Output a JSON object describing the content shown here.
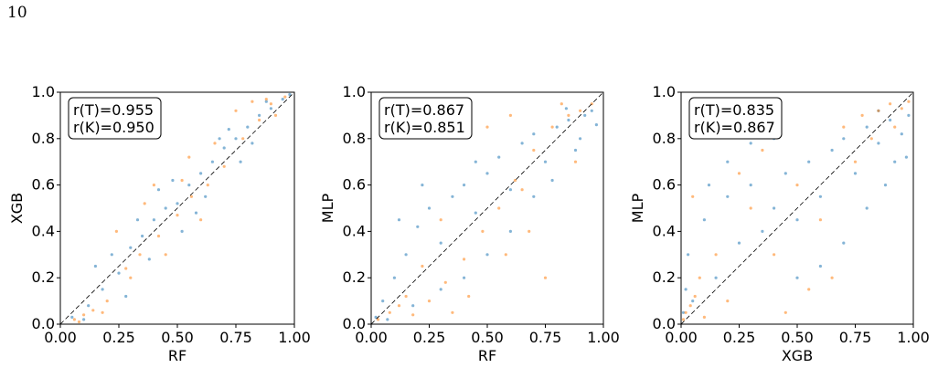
{
  "page_number": "10",
  "colors": {
    "series_T": "#1f77b4",
    "series_K": "#ff7f0e"
  },
  "chart_data": [
    {
      "type": "scatter",
      "xlabel": "RF",
      "ylabel": "XGB",
      "xlim": [
        0,
        1
      ],
      "ylim": [
        0,
        1
      ],
      "xticks": [
        "0.00",
        "0.25",
        "0.50",
        "0.75",
        "1.00"
      ],
      "yticks": [
        "0.0",
        "0.2",
        "0.4",
        "0.6",
        "0.8",
        "1.0"
      ],
      "annotation": [
        "r(T)=0.955",
        "r(K)=0.950"
      ],
      "diagonal": true,
      "series": [
        {
          "color": "#1f77b4",
          "points": [
            [
              0.05,
              0.03
            ],
            [
              0.12,
              0.08
            ],
            [
              0.18,
              0.15
            ],
            [
              0.25,
              0.22
            ],
            [
              0.3,
              0.33
            ],
            [
              0.35,
              0.38
            ],
            [
              0.4,
              0.45
            ],
            [
              0.45,
              0.5
            ],
            [
              0.5,
              0.52
            ],
            [
              0.55,
              0.6
            ],
            [
              0.6,
              0.65
            ],
            [
              0.65,
              0.7
            ],
            [
              0.7,
              0.76
            ],
            [
              0.75,
              0.8
            ],
            [
              0.8,
              0.85
            ],
            [
              0.85,
              0.9
            ],
            [
              0.9,
              0.93
            ],
            [
              0.95,
              0.97
            ],
            [
              0.98,
              0.99
            ],
            [
              0.22,
              0.3
            ],
            [
              0.38,
              0.28
            ],
            [
              0.48,
              0.62
            ],
            [
              0.62,
              0.55
            ],
            [
              0.72,
              0.84
            ],
            [
              0.15,
              0.25
            ],
            [
              0.28,
              0.12
            ],
            [
              0.42,
              0.58
            ],
            [
              0.58,
              0.48
            ],
            [
              0.68,
              0.8
            ],
            [
              0.82,
              0.78
            ],
            [
              0.88,
              0.96
            ],
            [
              0.1,
              0.02
            ],
            [
              0.33,
              0.45
            ],
            [
              0.52,
              0.4
            ],
            [
              0.77,
              0.7
            ]
          ]
        },
        {
          "color": "#ff7f0e",
          "points": [
            [
              0.06,
              0.02
            ],
            [
              0.1,
              0.04
            ],
            [
              0.14,
              0.06
            ],
            [
              0.2,
              0.1
            ],
            [
              0.28,
              0.24
            ],
            [
              0.34,
              0.3
            ],
            [
              0.42,
              0.38
            ],
            [
              0.5,
              0.47
            ],
            [
              0.56,
              0.55
            ],
            [
              0.63,
              0.6
            ],
            [
              0.7,
              0.68
            ],
            [
              0.78,
              0.8
            ],
            [
              0.85,
              0.88
            ],
            [
              0.9,
              0.95
            ],
            [
              0.96,
              0.98
            ],
            [
              0.24,
              0.4
            ],
            [
              0.4,
              0.6
            ],
            [
              0.55,
              0.72
            ],
            [
              0.66,
              0.78
            ],
            [
              0.75,
              0.92
            ],
            [
              0.3,
              0.2
            ],
            [
              0.45,
              0.3
            ],
            [
              0.6,
              0.45
            ],
            [
              0.18,
              0.05
            ],
            [
              0.82,
              0.96
            ],
            [
              0.08,
              0.01
            ],
            [
              0.36,
              0.52
            ],
            [
              0.52,
              0.62
            ],
            [
              0.92,
              0.9
            ],
            [
              0.88,
              0.97
            ]
          ]
        }
      ]
    },
    {
      "type": "scatter",
      "xlabel": "RF",
      "ylabel": "MLP",
      "xlim": [
        0,
        1
      ],
      "ylim": [
        0,
        1
      ],
      "xticks": [
        "0.00",
        "0.25",
        "0.50",
        "0.75",
        "1.00"
      ],
      "yticks": [
        "0.0",
        "0.2",
        "0.4",
        "0.6",
        "0.8",
        "1.0"
      ],
      "annotation": [
        "r(T)=0.867",
        "r(K)=0.851"
      ],
      "diagonal": true,
      "series": [
        {
          "color": "#1f77b4",
          "points": [
            [
              0.02,
              0.03
            ],
            [
              0.05,
              0.1
            ],
            [
              0.1,
              0.2
            ],
            [
              0.15,
              0.3
            ],
            [
              0.2,
              0.42
            ],
            [
              0.25,
              0.5
            ],
            [
              0.3,
              0.35
            ],
            [
              0.35,
              0.55
            ],
            [
              0.4,
              0.6
            ],
            [
              0.45,
              0.48
            ],
            [
              0.5,
              0.65
            ],
            [
              0.55,
              0.72
            ],
            [
              0.6,
              0.58
            ],
            [
              0.65,
              0.78
            ],
            [
              0.7,
              0.82
            ],
            [
              0.75,
              0.7
            ],
            [
              0.8,
              0.85
            ],
            [
              0.85,
              0.88
            ],
            [
              0.9,
              0.8
            ],
            [
              0.95,
              0.92
            ],
            [
              0.92,
              0.9
            ],
            [
              0.88,
              0.75
            ],
            [
              0.78,
              0.62
            ],
            [
              0.6,
              0.4
            ],
            [
              0.5,
              0.3
            ],
            [
              0.4,
              0.2
            ],
            [
              0.3,
              0.15
            ],
            [
              0.22,
              0.6
            ],
            [
              0.12,
              0.45
            ],
            [
              0.97,
              0.86
            ],
            [
              0.84,
              0.93
            ],
            [
              0.7,
              0.55
            ],
            [
              0.45,
              0.7
            ],
            [
              0.18,
              0.08
            ],
            [
              0.07,
              0.02
            ]
          ]
        },
        {
          "color": "#ff7f0e",
          "points": [
            [
              0.03,
              0.02
            ],
            [
              0.08,
              0.05
            ],
            [
              0.12,
              0.08
            ],
            [
              0.18,
              0.04
            ],
            [
              0.25,
              0.1
            ],
            [
              0.32,
              0.18
            ],
            [
              0.4,
              0.28
            ],
            [
              0.48,
              0.4
            ],
            [
              0.55,
              0.5
            ],
            [
              0.62,
              0.62
            ],
            [
              0.7,
              0.75
            ],
            [
              0.78,
              0.85
            ],
            [
              0.85,
              0.9
            ],
            [
              0.9,
              0.92
            ],
            [
              0.95,
              0.95
            ],
            [
              0.6,
              0.9
            ],
            [
              0.5,
              0.85
            ],
            [
              0.68,
              0.4
            ],
            [
              0.75,
              0.2
            ],
            [
              0.42,
              0.12
            ],
            [
              0.3,
              0.45
            ],
            [
              0.22,
              0.25
            ],
            [
              0.88,
              0.7
            ],
            [
              0.82,
              0.95
            ],
            [
              0.65,
              0.58
            ],
            [
              0.58,
              0.3
            ],
            [
              0.35,
              0.05
            ],
            [
              0.15,
              0.12
            ]
          ]
        }
      ]
    },
    {
      "type": "scatter",
      "xlabel": "XGB",
      "ylabel": "MLP",
      "xlim": [
        0,
        1
      ],
      "ylim": [
        0,
        1
      ],
      "xticks": [
        "0.00",
        "0.25",
        "0.50",
        "0.75",
        "1.00"
      ],
      "yticks": [
        "0.0",
        "0.2",
        "0.4",
        "0.6",
        "0.8",
        "1.0"
      ],
      "annotation": [
        "r(T)=0.835",
        "r(K)=0.867"
      ],
      "diagonal": true,
      "series": [
        {
          "color": "#1f77b4",
          "points": [
            [
              0.01,
              0.05
            ],
            [
              0.02,
              0.15
            ],
            [
              0.03,
              0.3
            ],
            [
              0.05,
              0.1
            ],
            [
              0.1,
              0.45
            ],
            [
              0.15,
              0.2
            ],
            [
              0.2,
              0.55
            ],
            [
              0.25,
              0.35
            ],
            [
              0.3,
              0.6
            ],
            [
              0.35,
              0.4
            ],
            [
              0.4,
              0.5
            ],
            [
              0.45,
              0.65
            ],
            [
              0.5,
              0.45
            ],
            [
              0.55,
              0.7
            ],
            [
              0.6,
              0.55
            ],
            [
              0.65,
              0.75
            ],
            [
              0.7,
              0.8
            ],
            [
              0.75,
              0.65
            ],
            [
              0.8,
              0.85
            ],
            [
              0.85,
              0.78
            ],
            [
              0.9,
              0.88
            ],
            [
              0.95,
              0.82
            ],
            [
              0.98,
              0.9
            ],
            [
              0.92,
              0.7
            ],
            [
              0.88,
              0.6
            ],
            [
              0.8,
              0.5
            ],
            [
              0.7,
              0.35
            ],
            [
              0.6,
              0.25
            ],
            [
              0.5,
              0.2
            ],
            [
              0.4,
              0.8
            ],
            [
              0.3,
              0.78
            ],
            [
              0.2,
              0.7
            ],
            [
              0.12,
              0.6
            ],
            [
              0.97,
              0.72
            ],
            [
              0.85,
              0.92
            ]
          ]
        },
        {
          "color": "#ff7f0e",
          "points": [
            [
              0.01,
              0.02
            ],
            [
              0.02,
              0.05
            ],
            [
              0.04,
              0.08
            ],
            [
              0.06,
              0.12
            ],
            [
              0.08,
              0.2
            ],
            [
              0.1,
              0.03
            ],
            [
              0.15,
              0.3
            ],
            [
              0.2,
              0.1
            ],
            [
              0.3,
              0.5
            ],
            [
              0.4,
              0.3
            ],
            [
              0.5,
              0.6
            ],
            [
              0.6,
              0.45
            ],
            [
              0.7,
              0.85
            ],
            [
              0.78,
              0.9
            ],
            [
              0.85,
              0.92
            ],
            [
              0.9,
              0.95
            ],
            [
              0.95,
              0.93
            ],
            [
              0.98,
              0.96
            ],
            [
              0.75,
              0.7
            ],
            [
              0.65,
              0.2
            ],
            [
              0.55,
              0.15
            ],
            [
              0.45,
              0.05
            ],
            [
              0.35,
              0.75
            ],
            [
              0.25,
              0.65
            ],
            [
              0.12,
              0.88
            ],
            [
              0.92,
              0.85
            ],
            [
              0.82,
              0.8
            ],
            [
              0.05,
              0.55
            ]
          ]
        }
      ]
    }
  ]
}
